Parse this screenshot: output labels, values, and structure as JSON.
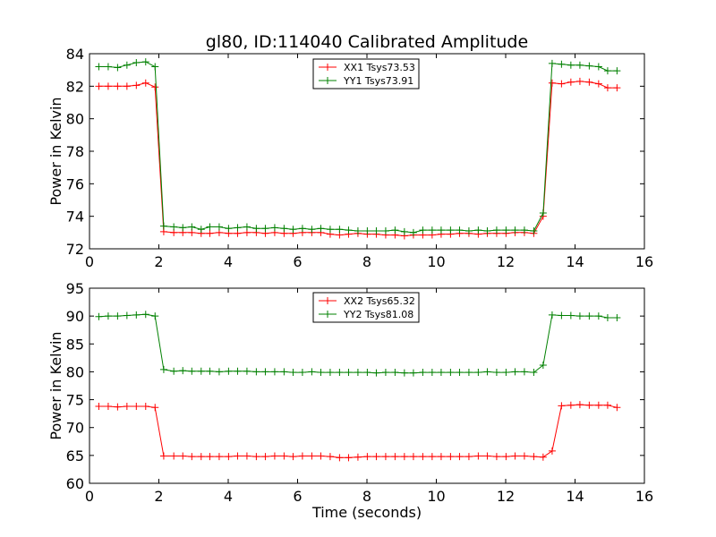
{
  "chart_data": {
    "title": "gl80, ID:114040 Calibrated Amplitude",
    "panels": [
      {
        "type": "line",
        "ylabel": "Power in Kelvin",
        "xlabel": "",
        "xlim": [
          0,
          16
        ],
        "ylim": [
          72,
          84
        ],
        "xticks": [
          0,
          2,
          4,
          6,
          8,
          10,
          12,
          14,
          16
        ],
        "yticks": [
          72,
          74,
          76,
          78,
          80,
          82,
          84
        ],
        "legend_position": "top-center",
        "series": [
          {
            "name": "XX1 Tsys73.53",
            "color": "#ff0000",
            "x": [
              0.27,
              0.54,
              0.81,
              1.08,
              1.35,
              1.62,
              1.89,
              2.14,
              2.43,
              2.69,
              2.95,
              3.22,
              3.47,
              3.74,
              4.01,
              4.27,
              4.54,
              4.81,
              5.07,
              5.34,
              5.61,
              5.87,
              6.14,
              6.41,
              6.67,
              6.94,
              7.21,
              7.47,
              7.74,
              8.01,
              8.27,
              8.54,
              8.81,
              9.08,
              9.34,
              9.61,
              9.88,
              10.14,
              10.41,
              10.67,
              10.94,
              11.21,
              11.47,
              11.74,
              12.01,
              12.27,
              12.54,
              12.81,
              13.08,
              13.34,
              13.61,
              13.88,
              14.14,
              14.41,
              14.68,
              14.94,
              15.21
            ],
            "y": [
              82.0,
              82.0,
              82.0,
              82.0,
              82.05,
              82.2,
              81.95,
              73.05,
              73.0,
              73.0,
              73.0,
              72.95,
              72.95,
              73.0,
              72.95,
              72.95,
              73.0,
              73.0,
              72.95,
              73.0,
              72.95,
              72.95,
              73.0,
              73.0,
              73.0,
              72.9,
              72.85,
              72.9,
              72.95,
              72.9,
              72.9,
              72.85,
              72.85,
              72.8,
              72.85,
              72.85,
              72.85,
              72.9,
              72.9,
              72.95,
              72.95,
              72.9,
              72.95,
              72.95,
              72.95,
              73.0,
              73.0,
              72.95,
              74.0,
              82.2,
              82.15,
              82.25,
              82.3,
              82.25,
              82.15,
              81.9,
              81.9
            ]
          },
          {
            "name": "YY1 Tsys73.91",
            "color": "#008000",
            "x": [
              0.27,
              0.54,
              0.81,
              1.08,
              1.35,
              1.62,
              1.89,
              2.14,
              2.43,
              2.69,
              2.95,
              3.22,
              3.47,
              3.74,
              4.01,
              4.27,
              4.54,
              4.81,
              5.07,
              5.34,
              5.61,
              5.87,
              6.14,
              6.41,
              6.67,
              6.94,
              7.21,
              7.47,
              7.74,
              8.01,
              8.27,
              8.54,
              8.81,
              9.08,
              9.34,
              9.61,
              9.88,
              10.14,
              10.41,
              10.67,
              10.94,
              11.21,
              11.47,
              11.74,
              12.01,
              12.27,
              12.54,
              12.81,
              13.08,
              13.34,
              13.61,
              13.88,
              14.14,
              14.41,
              14.68,
              14.94,
              15.21
            ],
            "y": [
              83.2,
              83.2,
              83.15,
              83.3,
              83.45,
              83.5,
              83.2,
              73.4,
              73.35,
              73.3,
              73.35,
              73.2,
              73.35,
              73.35,
              73.25,
              73.3,
              73.35,
              73.25,
              73.25,
              73.3,
              73.25,
              73.2,
              73.25,
              73.2,
              73.25,
              73.2,
              73.2,
              73.15,
              73.1,
              73.1,
              73.1,
              73.1,
              73.15,
              73.05,
              73.0,
              73.15,
              73.15,
              73.15,
              73.15,
              73.15,
              73.1,
              73.15,
              73.1,
              73.15,
              73.15,
              73.15,
              73.15,
              73.1,
              74.2,
              83.4,
              83.35,
              83.3,
              83.3,
              83.25,
              83.2,
              82.95,
              82.95
            ]
          }
        ]
      },
      {
        "type": "line",
        "ylabel": "Power in Kelvin",
        "xlabel": "Time (seconds)",
        "xlim": [
          0,
          16
        ],
        "ylim": [
          60,
          95
        ],
        "xticks": [
          0,
          2,
          4,
          6,
          8,
          10,
          12,
          14,
          16
        ],
        "yticks": [
          60,
          65,
          70,
          75,
          80,
          85,
          90,
          95
        ],
        "legend_position": "top-center",
        "series": [
          {
            "name": "XX2 Tsys65.32",
            "color": "#ff0000",
            "x": [
              0.27,
              0.54,
              0.81,
              1.08,
              1.35,
              1.62,
              1.89,
              2.14,
              2.43,
              2.69,
              2.95,
              3.22,
              3.47,
              3.74,
              4.01,
              4.27,
              4.54,
              4.81,
              5.07,
              5.34,
              5.61,
              5.87,
              6.14,
              6.41,
              6.67,
              6.94,
              7.21,
              7.47,
              7.74,
              8.01,
              8.27,
              8.54,
              8.81,
              9.08,
              9.34,
              9.61,
              9.88,
              10.14,
              10.41,
              10.67,
              10.94,
              11.21,
              11.47,
              11.74,
              12.01,
              12.27,
              12.54,
              12.81,
              13.08,
              13.34,
              13.61,
              13.88,
              14.14,
              14.41,
              14.68,
              14.94,
              15.21
            ],
            "y": [
              73.8,
              73.8,
              73.7,
              73.8,
              73.8,
              73.8,
              73.6,
              64.9,
              64.9,
              64.9,
              64.8,
              64.8,
              64.8,
              64.8,
              64.8,
              64.9,
              64.9,
              64.8,
              64.8,
              64.9,
              64.9,
              64.8,
              64.9,
              64.9,
              64.9,
              64.8,
              64.6,
              64.6,
              64.7,
              64.8,
              64.8,
              64.8,
              64.8,
              64.8,
              64.8,
              64.8,
              64.8,
              64.8,
              64.8,
              64.8,
              64.8,
              64.9,
              64.9,
              64.8,
              64.8,
              64.9,
              64.9,
              64.8,
              64.7,
              65.8,
              73.9,
              74.0,
              74.1,
              74.0,
              74.0,
              74.0,
              73.6
            ]
          },
          {
            "name": "YY2 Tsys81.08",
            "color": "#008000",
            "x": [
              0.27,
              0.54,
              0.81,
              1.08,
              1.35,
              1.62,
              1.89,
              2.14,
              2.43,
              2.69,
              2.95,
              3.22,
              3.47,
              3.74,
              4.01,
              4.27,
              4.54,
              4.81,
              5.07,
              5.34,
              5.61,
              5.87,
              6.14,
              6.41,
              6.67,
              6.94,
              7.21,
              7.47,
              7.74,
              8.01,
              8.27,
              8.54,
              8.81,
              9.08,
              9.34,
              9.61,
              9.88,
              10.14,
              10.41,
              10.67,
              10.94,
              11.21,
              11.47,
              11.74,
              12.01,
              12.27,
              12.54,
              12.81,
              13.08,
              13.34,
              13.61,
              13.88,
              14.14,
              14.41,
              14.68,
              14.94,
              15.21
            ],
            "y": [
              89.9,
              90.0,
              90.0,
              90.1,
              90.2,
              90.3,
              90.0,
              80.4,
              80.1,
              80.2,
              80.1,
              80.1,
              80.1,
              80.0,
              80.1,
              80.1,
              80.1,
              80.0,
              80.0,
              80.0,
              80.0,
              79.9,
              79.9,
              80.0,
              79.9,
              79.9,
              79.9,
              79.9,
              79.9,
              79.9,
              79.8,
              79.9,
              79.9,
              79.8,
              79.8,
              79.9,
              79.9,
              79.9,
              79.9,
              79.9,
              79.9,
              79.9,
              80.0,
              79.9,
              79.9,
              80.0,
              80.0,
              79.9,
              81.2,
              90.2,
              90.1,
              90.1,
              90.0,
              90.0,
              90.0,
              89.7,
              89.7
            ]
          }
        ]
      }
    ]
  }
}
